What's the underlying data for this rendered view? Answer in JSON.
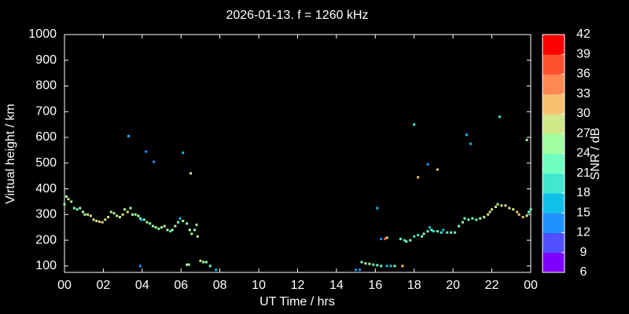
{
  "chart_data": {
    "type": "scatter",
    "title": "2026-01-13. f = 1260 kHz",
    "x_label": "UT Time / hrs",
    "y_label": "Virtual height / km",
    "colorbar_label": "SNR / dB",
    "xlim": [
      0,
      24
    ],
    "xticks": [
      {
        "value": 0,
        "label": "00"
      },
      {
        "value": 2,
        "label": "02"
      },
      {
        "value": 4,
        "label": "04"
      },
      {
        "value": 6,
        "label": "06"
      },
      {
        "value": 8,
        "label": "08"
      },
      10,
      12,
      14,
      16,
      18,
      20,
      22,
      {
        "value": 24,
        "label": "00"
      }
    ],
    "ylim": [
      75,
      1000
    ],
    "yticks": [
      100,
      200,
      300,
      400,
      500,
      600,
      700,
      800,
      900,
      1000
    ],
    "clim": [
      6,
      42
    ],
    "cticks": [
      6,
      9,
      12,
      15,
      18,
      21,
      24,
      27,
      30,
      33,
      36,
      39,
      42
    ],
    "colormap": [
      "#8000ff",
      "#5050ff",
      "#2090ff",
      "#10c0e8",
      "#40e8d0",
      "#70ffc0",
      "#a0ffa0",
      "#d0e888",
      "#f8c070",
      "#ff8850",
      "#ff5030",
      "#ff0000"
    ],
    "series": [
      {
        "x": [
          0.0,
          0.1,
          0.2,
          0.35,
          0.5,
          0.65,
          0.8,
          0.95,
          1.05,
          1.2,
          1.35,
          1.5,
          1.65,
          1.8,
          1.95,
          2.1,
          2.25,
          2.4,
          2.55,
          2.7,
          2.85,
          3.0,
          3.1,
          3.25,
          3.4,
          3.5,
          3.65,
          3.8,
          3.9,
          3.95,
          4.1,
          4.25,
          4.4,
          4.55,
          4.7,
          4.85,
          5.0,
          5.15,
          5.3,
          5.45,
          5.55,
          5.7,
          5.85,
          5.95,
          6.1,
          6.3,
          6.45,
          6.55,
          6.7,
          6.8,
          6.85,
          7.0,
          7.15,
          7.3,
          7.5,
          7.8,
          3.3,
          4.2,
          4.6,
          6.1,
          6.5,
          3.9,
          6.3,
          6.4,
          15.0,
          15.2,
          15.3,
          15.5,
          15.7,
          15.9,
          16.1,
          16.3,
          16.6,
          16.8,
          17.0,
          17.4,
          16.1,
          16.3,
          16.5,
          16.6,
          17.3,
          17.5,
          17.6,
          17.8,
          18.0,
          18.2,
          18.4,
          18.5,
          18.7,
          18.8,
          18.9,
          19.0,
          19.2,
          19.4,
          19.5,
          19.7,
          19.9,
          20.1,
          20.3,
          20.5,
          20.6,
          20.8,
          21.0,
          21.2,
          21.4,
          21.6,
          21.8,
          21.9,
          22.0,
          22.2,
          22.3,
          22.5,
          22.7,
          22.9,
          23.1,
          23.3,
          23.4,
          23.6,
          23.8,
          23.9,
          24.0,
          18.0,
          18.2,
          18.7,
          19.2,
          20.7,
          20.9,
          22.4,
          23.8
        ],
        "values": [
          340,
          370,
          360,
          350,
          325,
          320,
          325,
          310,
          300,
          300,
          295,
          280,
          275,
          272,
          270,
          280,
          290,
          310,
          305,
          295,
          290,
          300,
          320,
          310,
          325,
          300,
          300,
          295,
          285,
          280,
          280,
          270,
          265,
          255,
          250,
          245,
          250,
          255,
          240,
          235,
          240,
          255,
          270,
          285,
          275,
          265,
          240,
          225,
          240,
          260,
          215,
          120,
          115,
          115,
          100,
          85,
          605,
          545,
          505,
          540,
          460,
          100,
          105,
          105,
          85,
          85,
          115,
          110,
          108,
          105,
          103,
          100,
          100,
          100,
          100,
          100,
          325,
          205,
          205,
          210,
          205,
          200,
          195,
          200,
          215,
          220,
          215,
          225,
          235,
          250,
          240,
          235,
          235,
          230,
          240,
          230,
          230,
          230,
          255,
          270,
          285,
          280,
          285,
          280,
          285,
          290,
          300,
          310,
          320,
          330,
          340,
          335,
          335,
          325,
          320,
          310,
          300,
          290,
          295,
          310,
          320,
          650,
          445,
          495,
          475,
          610,
          575,
          680,
          590
        ],
        "snr": [
          24,
          24,
          27,
          24,
          21,
          21,
          24,
          24,
          24,
          27,
          27,
          27,
          27,
          30,
          27,
          27,
          27,
          24,
          27,
          24,
          27,
          27,
          24,
          27,
          24,
          24,
          24,
          24,
          21,
          15,
          21,
          24,
          24,
          24,
          24,
          24,
          24,
          27,
          24,
          18,
          24,
          24,
          21,
          15,
          24,
          24,
          24,
          24,
          24,
          24,
          27,
          27,
          24,
          24,
          21,
          15,
          15,
          12,
          12,
          15,
          27,
          12,
          24,
          24,
          12,
          12,
          21,
          24,
          24,
          21,
          21,
          21,
          15,
          15,
          21,
          30,
          15,
          12,
          36,
          27,
          21,
          18,
          21,
          21,
          18,
          18,
          21,
          21,
          21,
          15,
          21,
          18,
          21,
          18,
          15,
          21,
          21,
          21,
          21,
          24,
          21,
          21,
          21,
          21,
          24,
          27,
          27,
          27,
          27,
          27,
          24,
          27,
          27,
          27,
          27,
          30,
          30,
          30,
          27,
          21,
          21,
          18,
          30,
          12,
          30,
          15,
          15,
          18,
          24
        ]
      }
    ]
  }
}
